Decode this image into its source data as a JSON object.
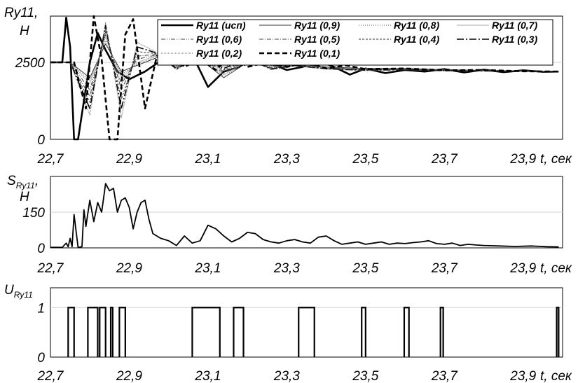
{
  "chart_data": [
    {
      "type": "line",
      "ylabel_line1": "Ry11,",
      "ylabel_line2": "Н",
      "xlabel": "t, сек",
      "xlim": [
        22.7,
        24.0
      ],
      "ylim": [
        0,
        4000
      ],
      "yticks": [
        "2500",
        "0"
      ],
      "ytick_values": [
        2500,
        0
      ],
      "xticks": [
        "22,7",
        "22,9",
        "23,1",
        "23,3",
        "23,5",
        "23,7",
        "23,9"
      ],
      "xtick_values": [
        22.7,
        22.9,
        23.1,
        23.3,
        23.5,
        23.7,
        23.9
      ],
      "grid": true,
      "legend_position": "top-right",
      "series": [
        {
          "name": "Ry11 (исп)",
          "style": "solid-thick",
          "x": [
            22.7,
            22.73,
            22.74,
            22.75,
            22.76,
            22.77,
            22.8,
            22.82,
            22.84,
            22.87,
            22.9,
            22.94,
            22.98,
            23.02,
            23.06,
            23.1,
            23.14,
            23.18,
            23.22,
            23.26,
            23.3,
            23.34,
            23.38,
            23.42,
            23.46,
            23.5,
            23.55,
            23.6,
            23.65,
            23.7,
            23.75,
            23.8,
            23.85,
            23.9,
            23.95,
            23.99
          ],
          "y": [
            2500,
            2500,
            3950,
            3000,
            0,
            0,
            2500,
            3450,
            2900,
            2200,
            1950,
            2200,
            2550,
            2450,
            2750,
            1700,
            2200,
            2350,
            2800,
            2450,
            2250,
            2350,
            2550,
            2350,
            2100,
            2300,
            2150,
            2250,
            2200,
            2280,
            2170,
            2260,
            2180,
            2240,
            2190,
            2200
          ]
        },
        {
          "name": "Ry11 (0,9)",
          "style": "solid-thin",
          "x": [
            22.7,
            22.75,
            22.8,
            22.84,
            22.88,
            22.92,
            22.97,
            23.02,
            23.08,
            23.14,
            23.2,
            23.26,
            23.32,
            23.4,
            23.5,
            23.6,
            23.7,
            23.8,
            23.9,
            23.99
          ],
          "y": [
            2500,
            2500,
            2000,
            3100,
            2200,
            2400,
            2650,
            2400,
            2600,
            2000,
            2500,
            2400,
            2450,
            2350,
            2300,
            2300,
            2260,
            2240,
            2220,
            2210
          ]
        },
        {
          "name": "Ry11 (0,8)",
          "style": "dotted",
          "x": [
            22.7,
            22.75,
            22.8,
            22.84,
            22.88,
            22.92,
            22.97,
            23.02,
            23.08,
            23.14,
            23.2,
            23.26,
            23.32,
            23.4,
            23.5,
            23.6,
            23.7,
            23.8,
            23.9,
            23.99
          ],
          "y": [
            2500,
            2500,
            1900,
            3200,
            2100,
            2450,
            2700,
            2380,
            2620,
            2050,
            2520,
            2380,
            2440,
            2340,
            2290,
            2290,
            2250,
            2240,
            2220,
            2210
          ]
        },
        {
          "name": "Ry11 (0,7)",
          "style": "solid-hair",
          "x": [
            22.7,
            22.75,
            22.8,
            22.84,
            22.88,
            22.92,
            22.97,
            23.02,
            23.08,
            23.14,
            23.2,
            23.26,
            23.32,
            23.4,
            23.5,
            23.6,
            23.7,
            23.8,
            23.9,
            23.99
          ],
          "y": [
            2500,
            2500,
            1800,
            3300,
            2000,
            2500,
            2720,
            2360,
            2640,
            2100,
            2540,
            2360,
            2430,
            2330,
            2280,
            2280,
            2250,
            2230,
            2220,
            2210
          ]
        },
        {
          "name": "Ry11 (0,6)",
          "style": "dash-dot-dot",
          "x": [
            22.7,
            22.75,
            22.8,
            22.84,
            22.88,
            22.92,
            22.97,
            23.02,
            23.08,
            23.14,
            23.2,
            23.26,
            23.32,
            23.4,
            23.5,
            23.6,
            23.7,
            23.8,
            23.9,
            23.99
          ],
          "y": [
            2500,
            2500,
            1600,
            3400,
            1800,
            2600,
            2740,
            2340,
            2660,
            2150,
            2560,
            2340,
            2420,
            2320,
            2270,
            2280,
            2240,
            2230,
            2220,
            2210
          ]
        },
        {
          "name": "Ry11 (0,5)",
          "style": "dash-dot",
          "x": [
            22.7,
            22.75,
            22.8,
            22.84,
            22.88,
            22.92,
            22.97,
            23.02,
            23.08,
            23.14,
            23.2,
            23.26,
            23.32,
            23.4,
            23.5,
            23.6,
            23.7,
            23.8,
            23.9,
            23.99
          ],
          "y": [
            2500,
            2500,
            1400,
            3500,
            1600,
            2700,
            2760,
            2320,
            2680,
            2200,
            2580,
            2320,
            2410,
            2310,
            2260,
            2270,
            2240,
            2230,
            2210,
            2210
          ]
        },
        {
          "name": "Ry11 (0,4)",
          "style": "dashed-fine",
          "x": [
            22.7,
            22.75,
            22.8,
            22.84,
            22.88,
            22.92,
            22.97,
            23.02,
            23.08,
            23.14,
            23.2,
            23.26,
            23.32,
            23.4,
            23.5,
            23.6,
            23.7,
            23.8,
            23.9,
            23.99
          ],
          "y": [
            2500,
            2500,
            1200,
            3600,
            1300,
            2850,
            2780,
            2300,
            2700,
            2250,
            2600,
            2300,
            2400,
            2300,
            2250,
            2270,
            2240,
            2220,
            2210,
            2200
          ]
        },
        {
          "name": "Ry11 (0,3)",
          "style": "long-dash-dot",
          "x": [
            22.7,
            22.75,
            22.8,
            22.84,
            22.88,
            22.92,
            22.97,
            23.02,
            23.08,
            23.14,
            23.2,
            23.26,
            23.32,
            23.4,
            23.5,
            23.6,
            23.7,
            23.8,
            23.9,
            23.99
          ],
          "y": [
            2500,
            2500,
            1000,
            3700,
            1000,
            3000,
            2800,
            2280,
            2720,
            2300,
            2620,
            2280,
            2390,
            2290,
            2240,
            2260,
            2230,
            2220,
            2210,
            2200
          ]
        },
        {
          "name": "Ry11 (0,2)",
          "style": "dotted-dense",
          "x": [
            22.7,
            22.75,
            22.8,
            22.84,
            22.88,
            22.92,
            22.97,
            23.02,
            23.08,
            23.14,
            23.2,
            23.26,
            23.32,
            23.4,
            23.5,
            23.6,
            23.7,
            23.8,
            23.9,
            23.99
          ],
          "y": [
            2500,
            2500,
            800,
            3800,
            700,
            3150,
            2820,
            2260,
            2740,
            2350,
            2640,
            2260,
            2380,
            2280,
            2230,
            2260,
            2230,
            2220,
            2210,
            2200
          ]
        },
        {
          "name": "Ry11 (0,1)",
          "style": "dashed-thick",
          "x": [
            22.7,
            22.76,
            22.79,
            22.81,
            22.83,
            22.85,
            22.87,
            22.89,
            22.91,
            22.94,
            22.97,
            23.0,
            23.04,
            23.08,
            23.12,
            23.16,
            23.2,
            23.25,
            23.3,
            23.35,
            23.4,
            23.45,
            23.5,
            23.6,
            23.7,
            23.8,
            23.9,
            23.99
          ],
          "y": [
            2500,
            2500,
            1000,
            4050,
            2600,
            0,
            0,
            3400,
            3900,
            1000,
            2700,
            2900,
            2350,
            2600,
            2250,
            2750,
            2350,
            2500,
            2350,
            2500,
            2300,
            2400,
            2280,
            2300,
            2240,
            2250,
            2210,
            2200
          ]
        }
      ]
    },
    {
      "type": "line",
      "ylabel_line1": "S",
      "ylabel_sub": "Ry11",
      "ylabel_comma": ",",
      "ylabel_line2": "Н",
      "xlabel": "t, сек",
      "xlim": [
        22.7,
        24.0
      ],
      "ylim": [
        0,
        300
      ],
      "yticks": [
        "150",
        "0"
      ],
      "ytick_values": [
        150,
        0
      ],
      "xticks": [
        "22,7",
        "22,9",
        "23,1",
        "23,3",
        "23,5",
        "23,7",
        "23,9"
      ],
      "xtick_values": [
        22.7,
        22.9,
        23.1,
        23.3,
        23.5,
        23.7,
        23.9
      ],
      "grid": true,
      "series": [
        {
          "name": "",
          "x": [
            22.7,
            22.73,
            22.74,
            22.745,
            22.75,
            22.755,
            22.76,
            22.77,
            22.775,
            22.78,
            22.785,
            22.79,
            22.8,
            22.81,
            22.82,
            22.83,
            22.84,
            22.85,
            22.86,
            22.87,
            22.88,
            22.89,
            22.9,
            22.91,
            22.92,
            22.93,
            22.94,
            22.95,
            22.96,
            22.97,
            22.98,
            22.99,
            23.0,
            23.02,
            23.04,
            23.06,
            23.08,
            23.1,
            23.12,
            23.14,
            23.16,
            23.18,
            23.2,
            23.22,
            23.24,
            23.26,
            23.28,
            23.3,
            23.32,
            23.34,
            23.36,
            23.38,
            23.4,
            23.42,
            23.44,
            23.46,
            23.48,
            23.5,
            23.52,
            23.54,
            23.56,
            23.58,
            23.6,
            23.62,
            23.64,
            23.66,
            23.68,
            23.7,
            23.72,
            23.74,
            23.76,
            23.78,
            23.8,
            23.84,
            23.88,
            23.92,
            23.96,
            23.99
          ],
          "y": [
            2,
            2,
            20,
            5,
            40,
            5,
            140,
            3,
            3,
            5,
            160,
            90,
            200,
            110,
            190,
            150,
            270,
            240,
            250,
            150,
            200,
            210,
            170,
            80,
            150,
            190,
            200,
            120,
            60,
            50,
            40,
            35,
            30,
            10,
            50,
            20,
            30,
            95,
            80,
            50,
            25,
            40,
            65,
            60,
            35,
            25,
            20,
            30,
            35,
            25,
            20,
            45,
            50,
            30,
            15,
            20,
            25,
            15,
            20,
            25,
            15,
            20,
            18,
            22,
            25,
            30,
            18,
            15,
            20,
            10,
            15,
            12,
            10,
            8,
            6,
            8,
            5,
            4
          ]
        }
      ]
    },
    {
      "type": "line",
      "ylabel_line1": "U",
      "ylabel_sub": "Ry11",
      "xlabel": "t, сек",
      "xlim": [
        22.7,
        24.0
      ],
      "ylim": [
        0,
        1.4
      ],
      "yticks": [
        "1",
        "0"
      ],
      "ytick_values": [
        1,
        0
      ],
      "xticks": [
        "22,7",
        "22,9",
        "23,1",
        "23,3",
        "23,5",
        "23,7",
        "23,9"
      ],
      "xtick_values": [
        22.7,
        22.9,
        23.1,
        23.3,
        23.5,
        23.7,
        23.9
      ],
      "grid": true,
      "pulses": [
        [
          22.745,
          22.76
        ],
        [
          22.795,
          22.82
        ],
        [
          22.825,
          22.84
        ],
        [
          22.853,
          22.858
        ],
        [
          22.875,
          22.89
        ],
        [
          23.06,
          23.13
        ],
        [
          23.165,
          23.19
        ],
        [
          23.33,
          23.37
        ],
        [
          23.49,
          23.5
        ],
        [
          23.598,
          23.61
        ],
        [
          23.69,
          23.697
        ],
        [
          23.985,
          23.99
        ]
      ]
    }
  ],
  "legend": [
    "Ry11 (исп)",
    "Ry11 (0,9)",
    "Ry11 (0,8)",
    "Ry11 (0,7)",
    "Ry11 (0,6)",
    "Ry11 (0,5)",
    "Ry11 (0,4)",
    "Ry11 (0,3)",
    "Ry11 (0,2)",
    "Ry11 (0,1)"
  ]
}
